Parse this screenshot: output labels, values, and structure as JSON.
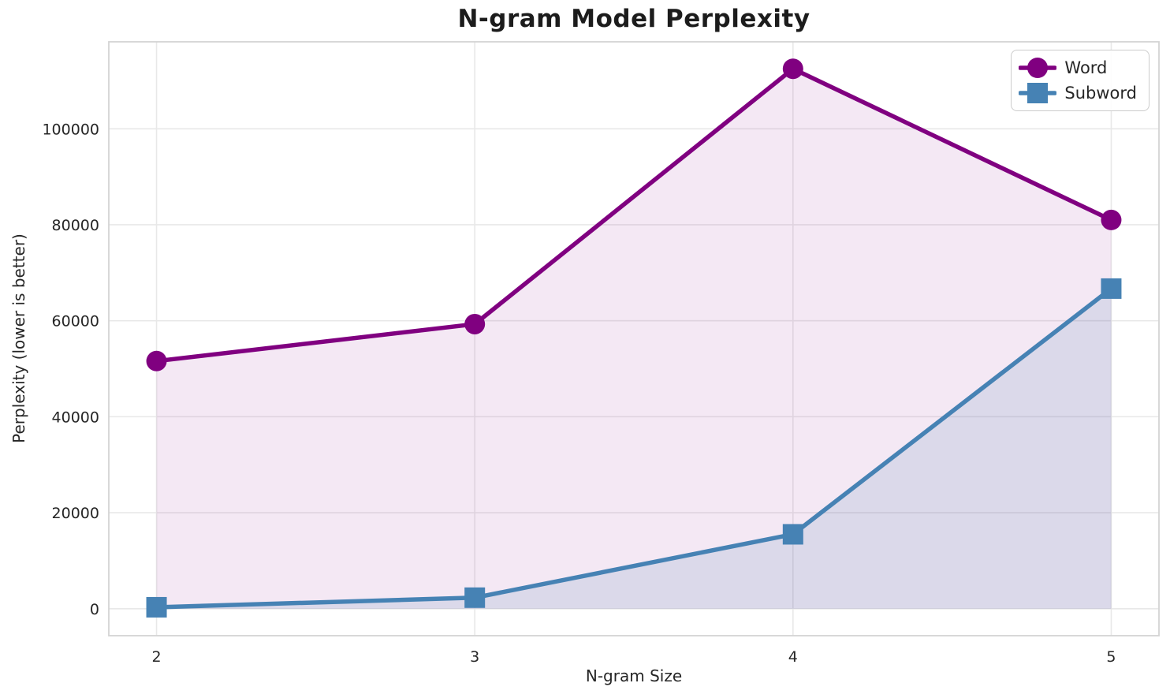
{
  "chart_data": {
    "type": "line",
    "title": "N-gram Model Perplexity",
    "xlabel": "N-gram Size",
    "ylabel": "Perplexity (lower is better)",
    "x": [
      2,
      3,
      4,
      5
    ],
    "series": [
      {
        "name": "Word",
        "values": [
          51600,
          59300,
          112500,
          81000
        ],
        "color": "#800080",
        "marker": "circle",
        "fill_color": "rgba(128,0,128,0.09)"
      },
      {
        "name": "Subword",
        "values": [
          300,
          2300,
          15500,
          66700
        ],
        "color": "#4682B4",
        "marker": "square",
        "fill_color": "rgba(70,130,180,0.14)"
      }
    ],
    "xlim": [
      1.85,
      5.15
    ],
    "ylim": [
      -5625,
      118125
    ],
    "xticks": [
      2,
      3,
      4,
      5
    ],
    "xtick_labels": [
      "2",
      "3",
      "4",
      "5"
    ],
    "yticks": [
      0,
      20000,
      40000,
      60000,
      80000,
      100000
    ],
    "ytick_labels": [
      "0",
      "20000",
      "40000",
      "60000",
      "80000",
      "100000"
    ],
    "grid": true,
    "legend_position": "upper right",
    "fill_to_baseline": 0,
    "colors": {
      "grid": "#e8e8e8",
      "spine": "#d4d4d4",
      "text": "#262626",
      "title_text": "#1c1c1c"
    }
  }
}
